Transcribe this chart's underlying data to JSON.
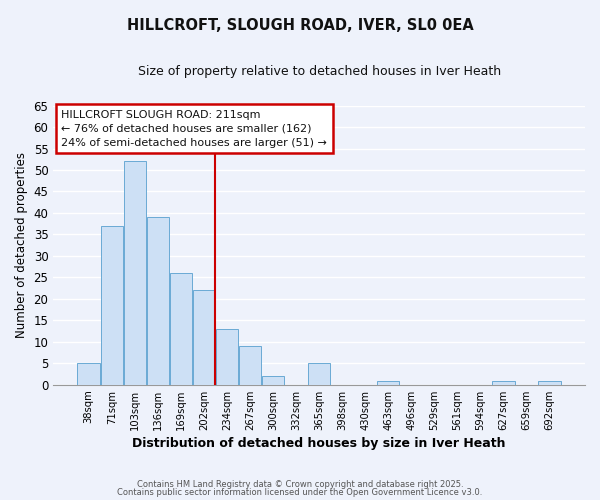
{
  "title": "HILLCROFT, SLOUGH ROAD, IVER, SL0 0EA",
  "subtitle": "Size of property relative to detached houses in Iver Heath",
  "xlabel": "Distribution of detached houses by size in Iver Heath",
  "ylabel": "Number of detached properties",
  "bar_labels": [
    "38sqm",
    "71sqm",
    "103sqm",
    "136sqm",
    "169sqm",
    "202sqm",
    "234sqm",
    "267sqm",
    "300sqm",
    "332sqm",
    "365sqm",
    "398sqm",
    "430sqm",
    "463sqm",
    "496sqm",
    "529sqm",
    "561sqm",
    "594sqm",
    "627sqm",
    "659sqm",
    "692sqm"
  ],
  "bar_values": [
    5,
    37,
    52,
    39,
    26,
    22,
    13,
    9,
    2,
    0,
    5,
    0,
    0,
    1,
    0,
    0,
    0,
    0,
    1,
    0,
    1
  ],
  "bar_color": "#cde0f5",
  "bar_edge_color": "#6aaad4",
  "background_color": "#eef2fb",
  "grid_color": "#ffffff",
  "ylim": [
    0,
    65
  ],
  "yticks": [
    0,
    5,
    10,
    15,
    20,
    25,
    30,
    35,
    40,
    45,
    50,
    55,
    60,
    65
  ],
  "vline_pos": 5.5,
  "vline_color": "#cc0000",
  "annotation_title": "HILLCROFT SLOUGH ROAD: 211sqm",
  "annotation_line1": "← 76% of detached houses are smaller (162)",
  "annotation_line2": "24% of semi-detached houses are larger (51) →",
  "annotation_box_facecolor": "#ffffff",
  "annotation_box_edgecolor": "#cc0000",
  "footer1": "Contains HM Land Registry data © Crown copyright and database right 2025.",
  "footer2": "Contains public sector information licensed under the Open Government Licence v3.0."
}
